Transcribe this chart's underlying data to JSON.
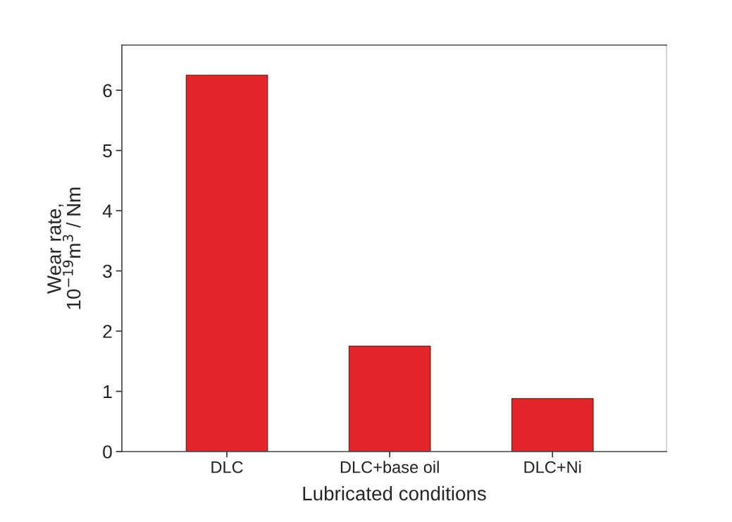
{
  "chart_data": {
    "type": "bar",
    "categories": [
      "DLC",
      "DLC+base oil",
      "DLC+Ni"
    ],
    "values": [
      6.25,
      1.75,
      0.88
    ],
    "color": "#e3262a",
    "xlabel": "Lubricated conditions",
    "ylabel": "Wear rate,\n10$^{−19}$m$^{3}$ / Nm",
    "ylim": [
      0,
      6.75
    ],
    "yticks": [
      0,
      1,
      2,
      3,
      4,
      5,
      6
    ],
    "grid": false,
    "legend": false
  }
}
